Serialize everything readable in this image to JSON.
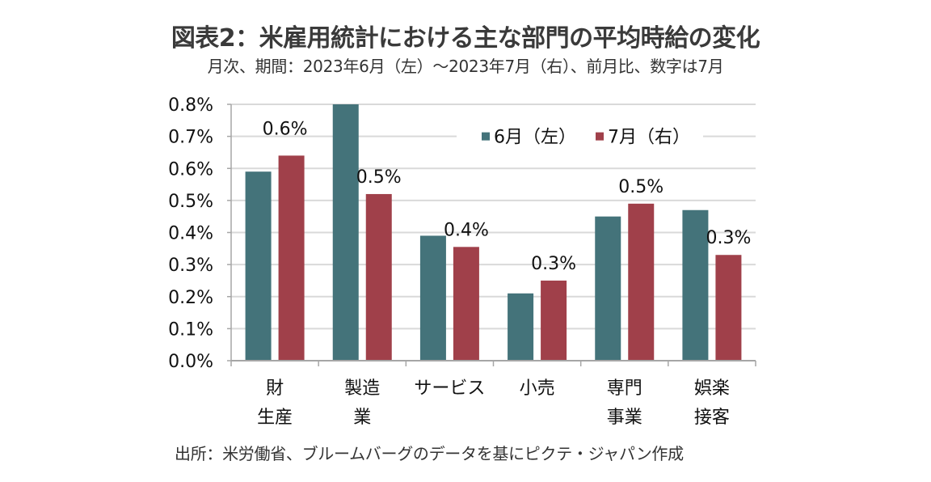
{
  "header": {
    "title": "図表2：米雇用統計における主な部門の平均時給の変化",
    "subtitle": "月次、期間：2023年6月（左）～2023年7月（右）、前月比、数字は7月"
  },
  "footer": {
    "source": "出所：米労働省、ブルームバーグのデータを基にピクテ・ジャパン作成"
  },
  "chart_data": {
    "type": "bar",
    "title": "図表2：米雇用統計における主な部門の平均時給の変化",
    "subtitle": "月次、期間：2023年6月（左）～2023年7月（右）、前月比、数字は7月",
    "xlabel": "",
    "ylabel": "",
    "ylim": [
      0,
      0.8
    ],
    "yticks": [
      0.0,
      0.1,
      0.2,
      0.3,
      0.4,
      0.5,
      0.6,
      0.7,
      0.8
    ],
    "ytick_labels": [
      "0.0%",
      "0.1%",
      "0.2%",
      "0.3%",
      "0.4%",
      "0.5%",
      "0.6%",
      "0.7%",
      "0.8%"
    ],
    "grid": true,
    "legend_position": "top-right",
    "categories": [
      [
        "財",
        "生産"
      ],
      [
        "製造",
        "業"
      ],
      [
        "サービス"
      ],
      [
        "小売"
      ],
      [
        "専門",
        "事業"
      ],
      [
        "娯楽",
        "接客"
      ]
    ],
    "series": [
      {
        "name": "6月（左）",
        "color": "#44737a",
        "values": [
          0.59,
          0.8,
          0.39,
          0.21,
          0.45,
          0.47
        ]
      },
      {
        "name": "7月（右）",
        "color": "#a0404a",
        "values": [
          0.64,
          0.52,
          0.355,
          0.25,
          0.49,
          0.33
        ]
      }
    ],
    "data_labels": [
      "0.6%",
      "0.5%",
      "0.4%",
      "0.3%",
      "0.5%",
      "0.3%"
    ],
    "data_labels_series": "7月（右）"
  }
}
